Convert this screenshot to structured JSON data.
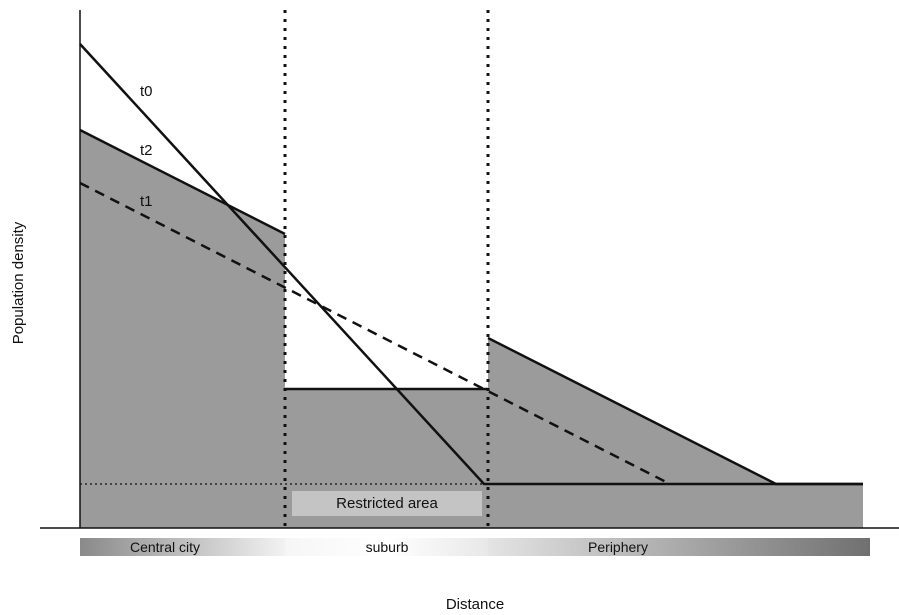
{
  "axes": {
    "ylabel": "Population density",
    "xlabel": "Distance"
  },
  "curves": {
    "t0": "t0",
    "t1": "t1",
    "t2": "t2"
  },
  "restricted_area": "Restricted area",
  "zones": {
    "central": "Central city",
    "suburb": "suburb",
    "periphery": "Periphery"
  },
  "colors": {
    "fill": "#9b9b9b",
    "line": "#111111",
    "restricted_box": "#c4c4c4"
  }
}
